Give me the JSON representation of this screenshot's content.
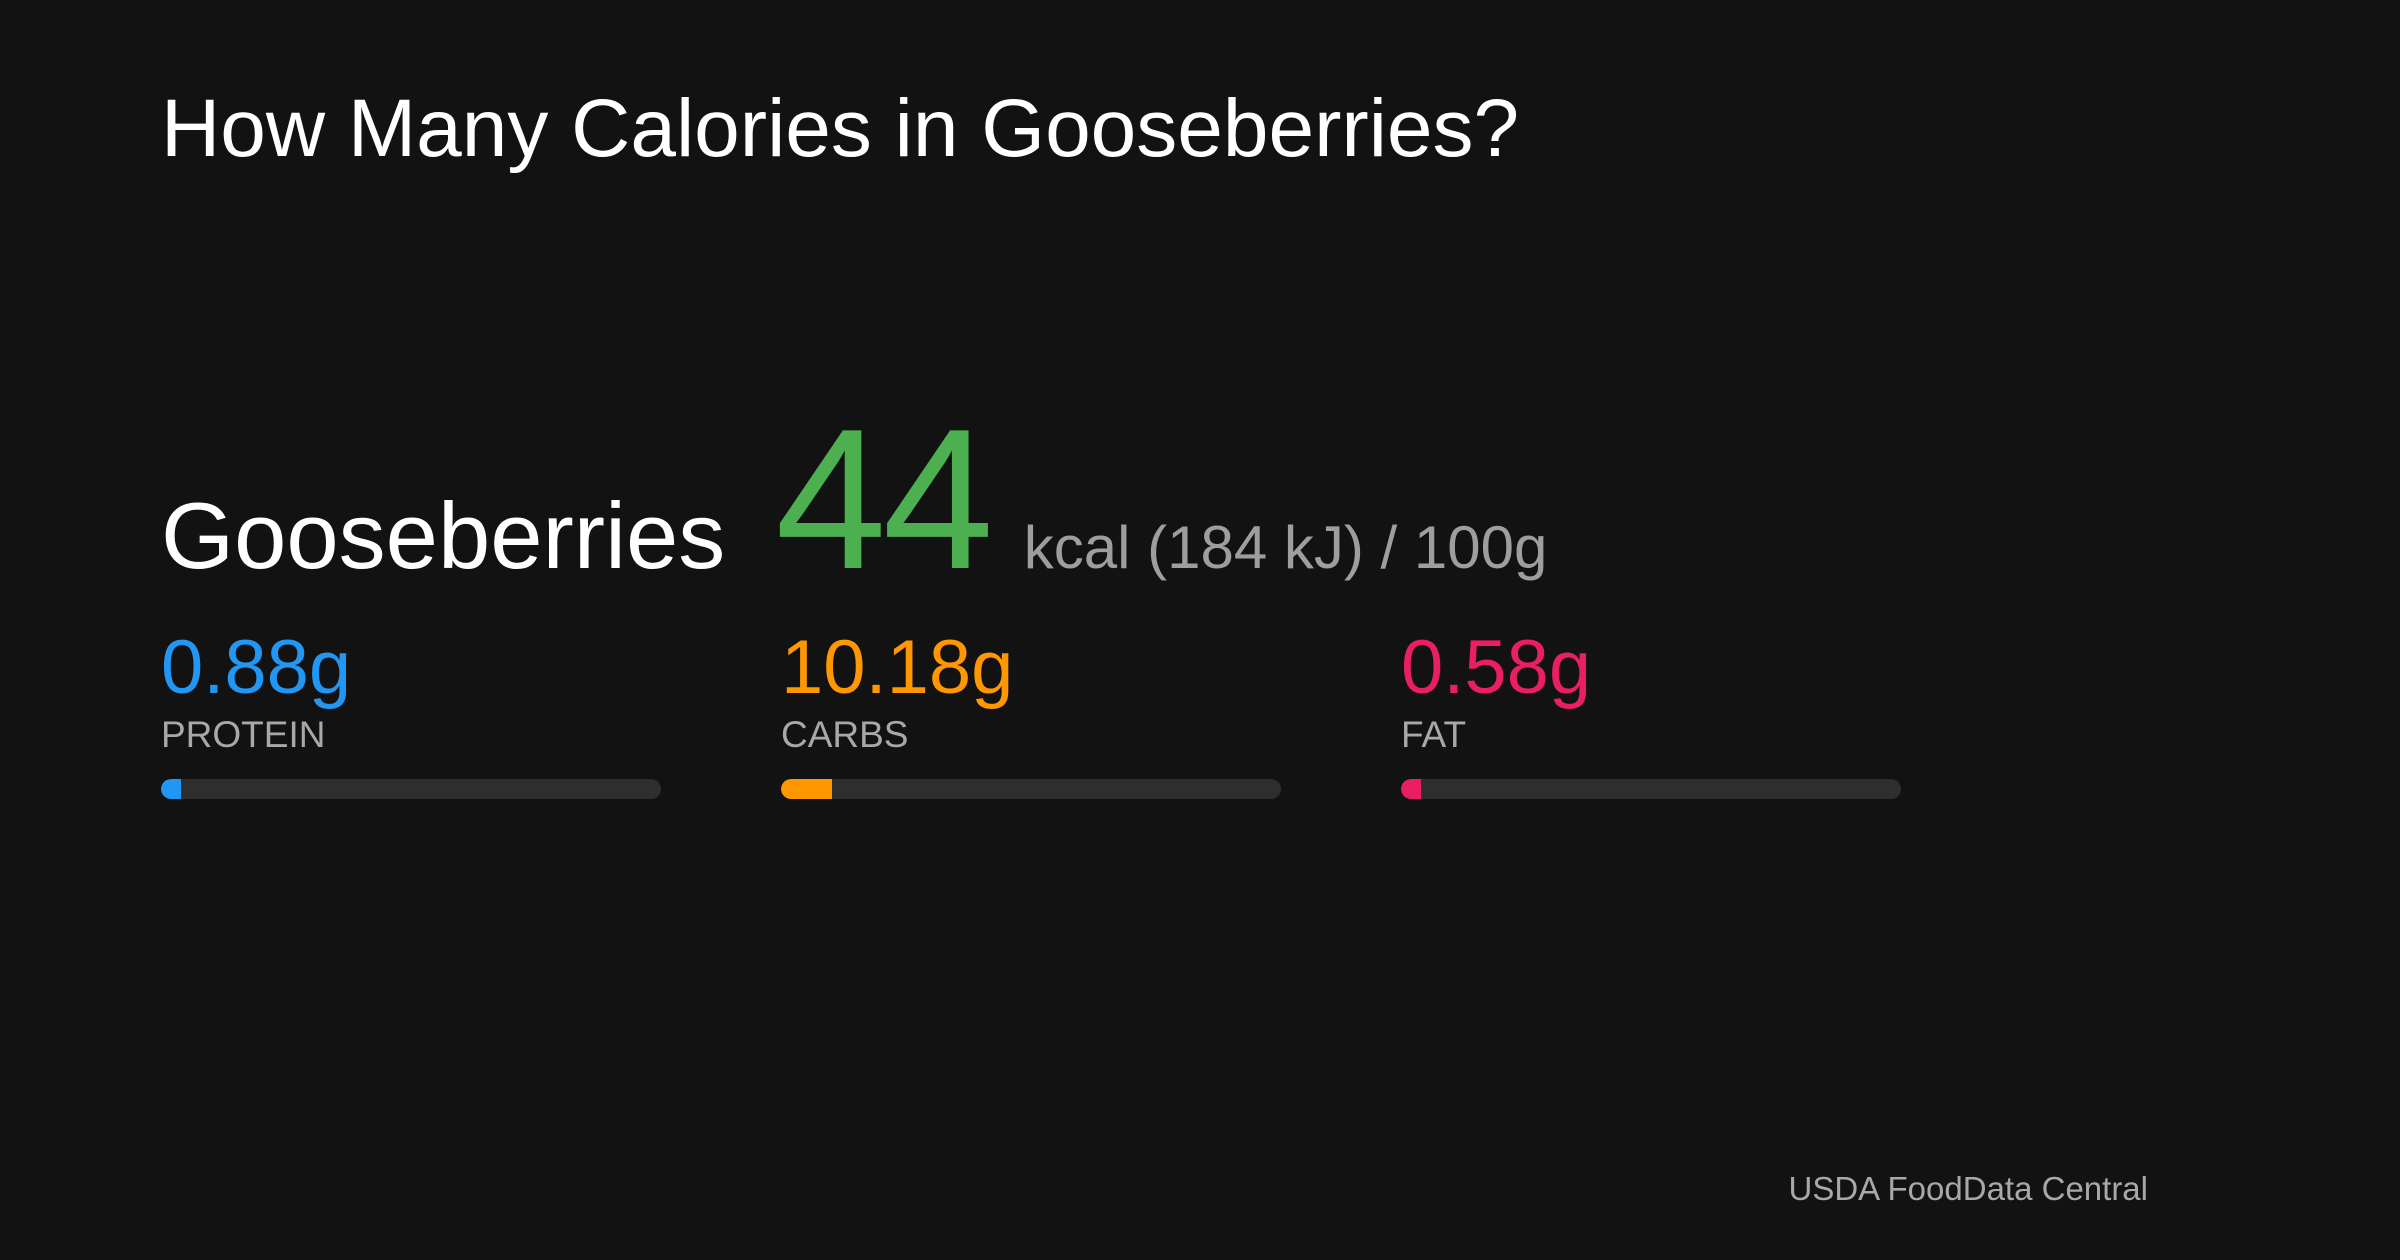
{
  "header": {
    "title": "How Many Calories in Gooseberries?"
  },
  "food": {
    "name": "Gooseberries",
    "calories": "44",
    "unit": "kcal (184 kJ) / 100g"
  },
  "macros": [
    {
      "label": "0.88g",
      "name": "PROTEIN",
      "value": 0.88
    },
    {
      "label": "10.18g",
      "name": "CARBS",
      "value": 10.18
    },
    {
      "label": "0.58g",
      "name": "FAT",
      "value": 0.58
    }
  ],
  "footer": {
    "source": "USDA FoodData Central"
  }
}
